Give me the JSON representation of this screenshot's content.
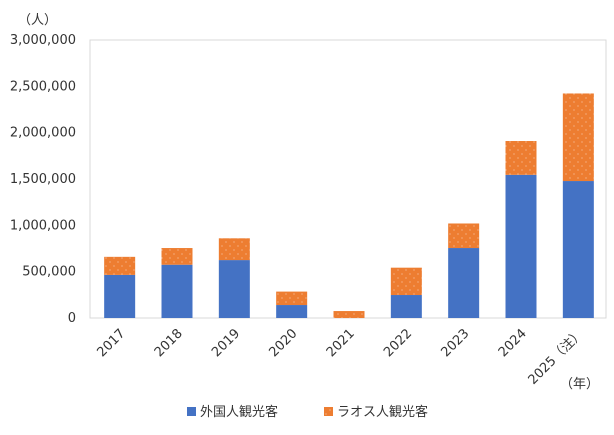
{
  "chart_data": {
    "type": "bar",
    "stacked": true,
    "y_unit_label": "（人）",
    "x_unit_label": "（年）",
    "categories": [
      "2017",
      "2018",
      "2019",
      "2020",
      "2021",
      "2022",
      "2023",
      "2024",
      "2025（注）"
    ],
    "series": [
      {
        "name": "外国人観光客",
        "color": "#4472C4",
        "values": [
          465000,
          575000,
          625000,
          140000,
          0,
          248000,
          755000,
          1545000,
          1478000
        ]
      },
      {
        "name": "ラオス人観光客",
        "color": "#ED7D31",
        "values": [
          195000,
          180000,
          235000,
          145000,
          75000,
          295000,
          265000,
          365000,
          945000
        ]
      }
    ],
    "ylim": [
      0,
      3000000
    ],
    "yticks": [
      0,
      500000,
      1000000,
      1500000,
      2000000,
      2500000,
      3000000
    ],
    "ytick_labels": [
      "0",
      "500,000",
      "1,000,000",
      "1,500,000",
      "2,000,000",
      "2,500,000",
      "3,000,000"
    ],
    "grid": false,
    "legend_position": "bottom"
  }
}
